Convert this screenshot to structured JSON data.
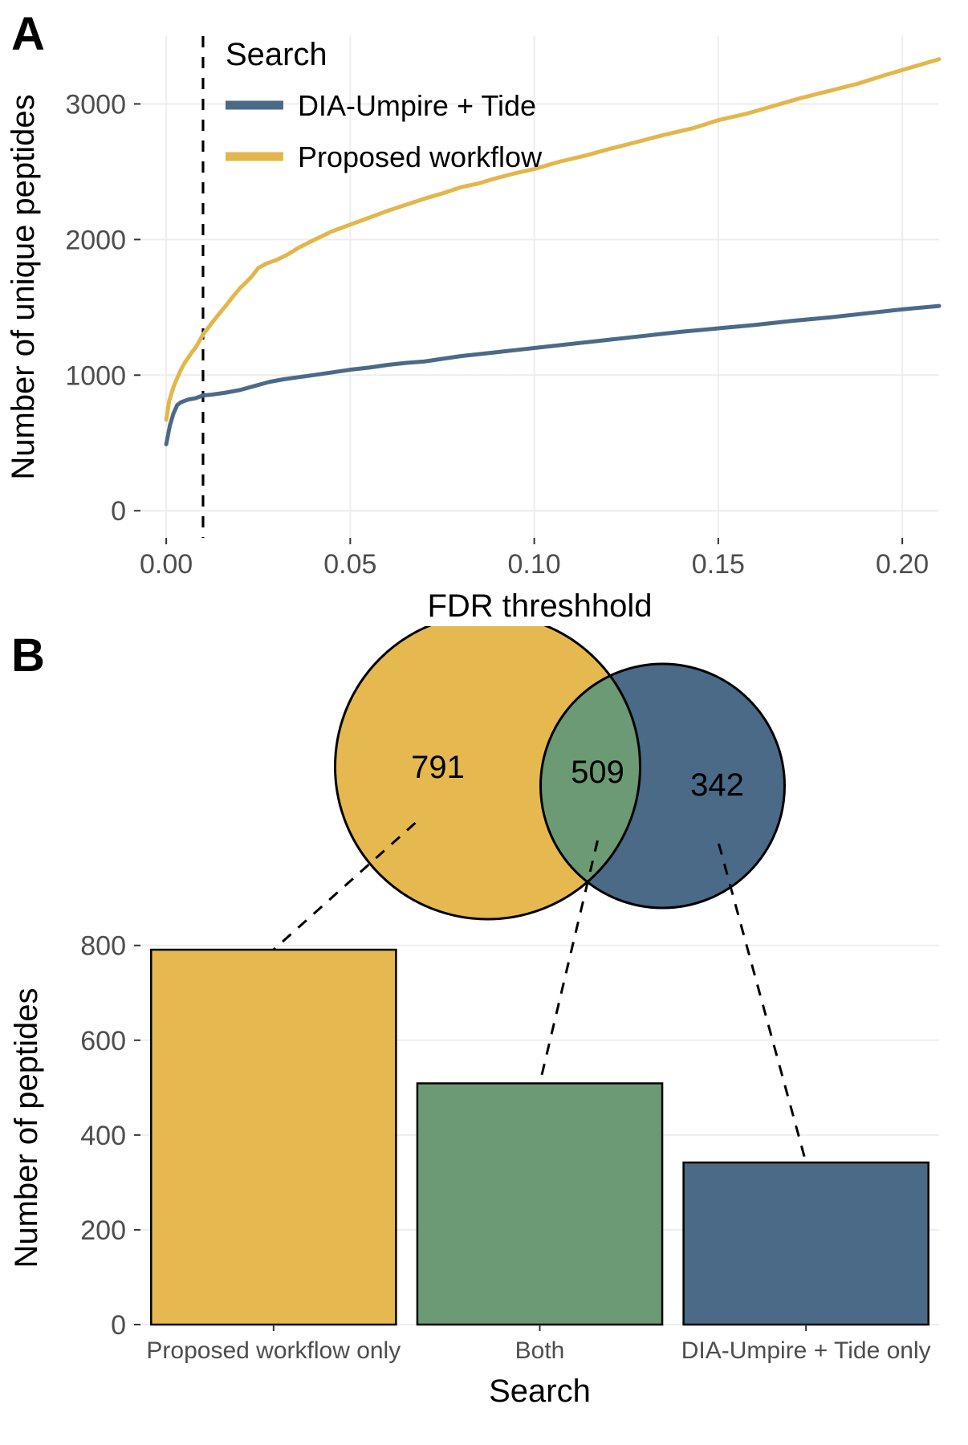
{
  "colors": {
    "background": "#ffffff",
    "panel_grid": "#ededed",
    "panel_border": "#ffffff",
    "axis_text": "#4d4d4d",
    "axis_title": "#000000",
    "axis_tick": "#333333",
    "chart_font": "Arial, Helvetica, sans-serif"
  },
  "panelA": {
    "label": "A",
    "legend_title": "Search",
    "xlabel": "FDR threshhold",
    "ylabel": "Number of unique peptides",
    "xlim": [
      -0.007,
      0.21
    ],
    "ylim": [
      -200,
      3500
    ],
    "xticks": [
      0.0,
      0.05,
      0.1,
      0.15,
      0.2
    ],
    "xtick_labels": [
      "0.00",
      "0.05",
      "0.10",
      "0.15",
      "0.20"
    ],
    "yticks": [
      0,
      1000,
      2000,
      3000
    ],
    "ytick_labels": [
      "0",
      "1000",
      "2000",
      "3000"
    ],
    "vline_x": 0.01,
    "vline_dash": "14,12",
    "vline_color": "#000000",
    "line_width": 5.0,
    "axis_title_fontsize": 40,
    "axis_tick_fontsize": 34,
    "legend_title_fontsize": 40,
    "legend_text_fontsize": 36,
    "panel_label_fontsize": 58,
    "series": [
      {
        "name": "DIA-Umpire + Tide",
        "color": "#4a6a87",
        "points": [
          [
            0.0,
            490
          ],
          [
            0.001,
            630
          ],
          [
            0.002,
            720
          ],
          [
            0.003,
            780
          ],
          [
            0.004,
            800
          ],
          [
            0.006,
            820
          ],
          [
            0.008,
            830
          ],
          [
            0.01,
            850
          ],
          [
            0.012,
            855
          ],
          [
            0.016,
            870
          ],
          [
            0.02,
            890
          ],
          [
            0.024,
            920
          ],
          [
            0.028,
            950
          ],
          [
            0.032,
            970
          ],
          [
            0.036,
            985
          ],
          [
            0.04,
            1000
          ],
          [
            0.045,
            1020
          ],
          [
            0.05,
            1040
          ],
          [
            0.055,
            1055
          ],
          [
            0.06,
            1075
          ],
          [
            0.065,
            1090
          ],
          [
            0.07,
            1100
          ],
          [
            0.075,
            1120
          ],
          [
            0.08,
            1140
          ],
          [
            0.085,
            1155
          ],
          [
            0.09,
            1170
          ],
          [
            0.095,
            1185
          ],
          [
            0.1,
            1200
          ],
          [
            0.11,
            1230
          ],
          [
            0.12,
            1260
          ],
          [
            0.13,
            1290
          ],
          [
            0.14,
            1320
          ],
          [
            0.15,
            1345
          ],
          [
            0.16,
            1370
          ],
          [
            0.17,
            1400
          ],
          [
            0.18,
            1425
          ],
          [
            0.19,
            1455
          ],
          [
            0.2,
            1485
          ],
          [
            0.21,
            1510
          ]
        ]
      },
      {
        "name": "Proposed workflow",
        "color": "#e3b64b",
        "points": [
          [
            0.0,
            670
          ],
          [
            0.0008,
            810
          ],
          [
            0.0015,
            870
          ],
          [
            0.002,
            915
          ],
          [
            0.003,
            980
          ],
          [
            0.004,
            1040
          ],
          [
            0.005,
            1090
          ],
          [
            0.006,
            1130
          ],
          [
            0.007,
            1170
          ],
          [
            0.008,
            1205
          ],
          [
            0.009,
            1250
          ],
          [
            0.01,
            1300
          ],
          [
            0.012,
            1370
          ],
          [
            0.014,
            1440
          ],
          [
            0.016,
            1505
          ],
          [
            0.018,
            1575
          ],
          [
            0.02,
            1640
          ],
          [
            0.023,
            1720
          ],
          [
            0.025,
            1790
          ],
          [
            0.027,
            1820
          ],
          [
            0.028,
            1830
          ],
          [
            0.03,
            1850
          ],
          [
            0.033,
            1890
          ],
          [
            0.036,
            1940
          ],
          [
            0.04,
            1995
          ],
          [
            0.045,
            2060
          ],
          [
            0.05,
            2110
          ],
          [
            0.055,
            2160
          ],
          [
            0.06,
            2210
          ],
          [
            0.065,
            2255
          ],
          [
            0.07,
            2300
          ],
          [
            0.075,
            2340
          ],
          [
            0.08,
            2385
          ],
          [
            0.085,
            2415
          ],
          [
            0.09,
            2455
          ],
          [
            0.095,
            2490
          ],
          [
            0.1,
            2520
          ],
          [
            0.107,
            2575
          ],
          [
            0.114,
            2620
          ],
          [
            0.12,
            2665
          ],
          [
            0.128,
            2720
          ],
          [
            0.135,
            2770
          ],
          [
            0.143,
            2820
          ],
          [
            0.15,
            2880
          ],
          [
            0.158,
            2930
          ],
          [
            0.165,
            2985
          ],
          [
            0.172,
            3040
          ],
          [
            0.18,
            3095
          ],
          [
            0.188,
            3150
          ],
          [
            0.195,
            3210
          ],
          [
            0.2,
            3250
          ],
          [
            0.205,
            3290
          ],
          [
            0.21,
            3330
          ]
        ]
      }
    ]
  },
  "panelB": {
    "label": "B",
    "xlabel": "Search",
    "ylabel": "Number of peptides",
    "ylim": [
      0,
      830
    ],
    "yticks": [
      0,
      200,
      400,
      600,
      800
    ],
    "ytick_labels": [
      "0",
      "200",
      "400",
      "600",
      "800"
    ],
    "axis_title_fontsize": 40,
    "axis_tick_fontsize": 34,
    "panel_label_fontsize": 58,
    "bar_border": "#000000",
    "bar_border_width": 2.5,
    "categories": [
      {
        "label": "Proposed workflow only",
        "value": 791,
        "color": "#e5b950"
      },
      {
        "label": "Both",
        "value": 509,
        "color": "#6c9a74"
      },
      {
        "label": "DIA-Umpire + Tide only",
        "value": 342,
        "color": "#4a6a87"
      }
    ],
    "venn": {
      "left_color": "#e5b950",
      "right_color": "#4a6a87",
      "overlap_color": "#6c9a74",
      "stroke": "#000000",
      "stroke_width": 3.0,
      "left_value": "791",
      "mid_value": "509",
      "right_value": "342",
      "value_fontsize": 40
    },
    "connector_dash": "14,12",
    "connector_color": "#000000"
  }
}
